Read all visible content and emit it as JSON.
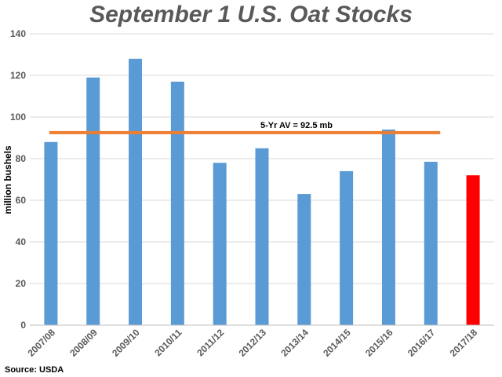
{
  "chart_data": {
    "type": "bar",
    "title": "September 1 U.S. Oat Stocks",
    "ylabel": "million bushels",
    "xlabel": "",
    "categories": [
      "2007/08",
      "2008/09",
      "2009/10",
      "2010/11",
      "2011/12",
      "2012/13",
      "2013/14",
      "2014/15",
      "2015/16",
      "2016/17",
      "2017/18"
    ],
    "values": [
      88,
      119,
      128,
      117,
      78,
      85,
      63,
      74,
      94,
      78.5,
      72
    ],
    "ylim": [
      0,
      140
    ],
    "yticks": [
      "0",
      "20",
      "40",
      "60",
      "80",
      "100",
      "120",
      "140"
    ],
    "grid": true,
    "bar_color": "#5b9bd5",
    "highlight_color": "#ff0000",
    "highlight_index": 10,
    "average_line": {
      "label": "5-Yr AV  =  92.5 mb",
      "value": 92.5,
      "color": "#ed7d31"
    },
    "source": "Source: USDA"
  }
}
